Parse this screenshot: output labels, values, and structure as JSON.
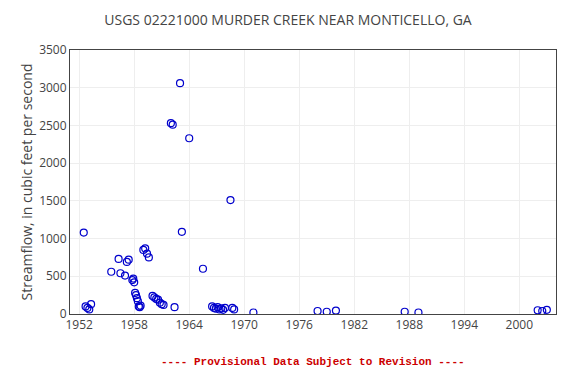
{
  "chart_data": {
    "type": "scatter",
    "title": "USGS 02221000 MURDER CREEK NEAR MONTICELLO, GA",
    "ylabel": "Streamflow, in cubic feet per second",
    "x": [
      1952.5,
      1952.7,
      1952.9,
      1953.1,
      1953.3,
      1955.5,
      1956.3,
      1956.5,
      1957.0,
      1957.2,
      1957.4,
      1957.8,
      1957.9,
      1958.0,
      1958.1,
      1958.2,
      1958.3,
      1958.4,
      1958.5,
      1958.6,
      1958.7,
      1959.0,
      1959.2,
      1959.4,
      1959.6,
      1960.0,
      1960.2,
      1960.4,
      1960.6,
      1960.8,
      1961.0,
      1961.2,
      1962.0,
      1962.2,
      1962.4,
      1963.0,
      1963.2,
      1964.0,
      1965.5,
      1966.5,
      1966.7,
      1966.9,
      1967.1,
      1967.3,
      1967.5,
      1967.7,
      1967.9,
      1968.5,
      1968.7,
      1968.9,
      1971.0,
      1978.0,
      1979.0,
      1980.0,
      1987.5,
      1989.0,
      2002.0,
      2002.5,
      2003.0
    ],
    "values": [
      1080,
      100,
      80,
      60,
      130,
      560,
      730,
      540,
      510,
      690,
      720,
      450,
      470,
      420,
      280,
      250,
      210,
      170,
      100,
      90,
      110,
      850,
      870,
      800,
      750,
      240,
      220,
      200,
      190,
      150,
      130,
      120,
      2530,
      2510,
      90,
      3060,
      1090,
      2330,
      600,
      100,
      80,
      70,
      90,
      60,
      75,
      55,
      80,
      1510,
      80,
      60,
      20,
      40,
      30,
      45,
      30,
      20,
      50,
      40,
      55
    ],
    "color": "#0000CC",
    "marker": "circle-open",
    "xlim": [
      1951,
      2004
    ],
    "ylim": [
      0,
      3500
    ],
    "xticks": [
      1952,
      1958,
      1964,
      1970,
      1976,
      1982,
      1988,
      1994,
      2000
    ],
    "yticks": [
      0,
      500,
      1000,
      1500,
      2000,
      2500,
      3000,
      3500
    ],
    "grid": true,
    "annotations": [
      {
        "text": "---- Provisional Data Subject to Revision ----",
        "color": "#CC0000"
      }
    ]
  }
}
